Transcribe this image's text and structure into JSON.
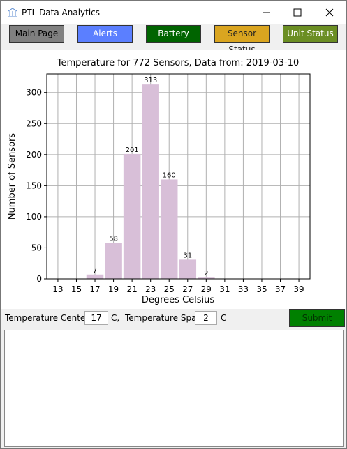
{
  "window": {
    "title": "PTL Data Analytics"
  },
  "nav": {
    "buttons": [
      "Main Page",
      "Alerts",
      "Battery",
      "Sensor Status",
      "Unit Status"
    ]
  },
  "chart_data": {
    "type": "histogram",
    "title": "Temperature for 772 Sensors, Data from: 2019-03-10",
    "x_label": "Degrees Celsius",
    "y_label": "Number of Sensors",
    "bins": [
      16,
      18,
      20,
      22,
      24,
      26,
      28,
      30
    ],
    "counts": [
      7,
      58,
      201,
      313,
      160,
      31,
      2
    ],
    "color": "#d8bfd8",
    "xlim": [
      11.8,
      40.2
    ],
    "xticks": [
      13,
      15,
      17,
      19,
      21,
      23,
      25,
      27,
      29,
      31,
      33,
      35,
      37,
      39
    ],
    "ylim": [
      0,
      330
    ],
    "yticks": [
      0,
      50,
      100,
      150,
      200,
      250,
      300
    ],
    "grid": true
  },
  "form": {
    "center_label": "Temperature Center :",
    "center_value": "17",
    "center_unit": "C,",
    "span_label": "Temperature Span",
    "span_value": "2",
    "span_unit": "C",
    "submit": "Submit"
  }
}
